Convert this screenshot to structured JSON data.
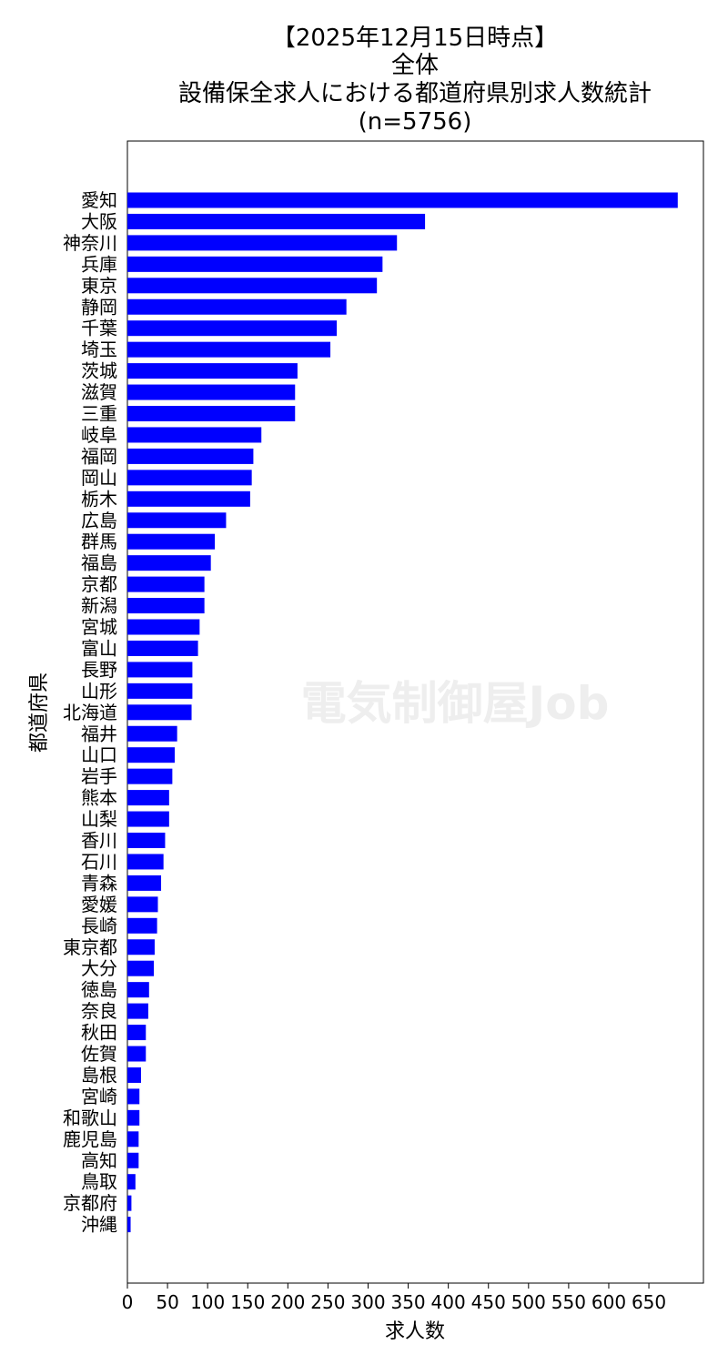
{
  "chart_data": {
    "type": "bar",
    "orientation": "horizontal",
    "title_lines": [
      "【2025年12月15日時点】",
      "全体",
      "設備保全求人における都道府県別求人数統計",
      "(n=5756)"
    ],
    "xlabel": "求人数",
    "ylabel": "都道府県",
    "xlim": [
      0,
      718
    ],
    "xticks": [
      0,
      50,
      100,
      150,
      200,
      250,
      300,
      350,
      400,
      450,
      500,
      550,
      600,
      650
    ],
    "bar_color": "#0000ff",
    "grid": false,
    "watermark": "電気制御屋Job",
    "categories": [
      "愛知",
      "大阪",
      "神奈川",
      "兵庫",
      "東京",
      "静岡",
      "千葉",
      "埼玉",
      "茨城",
      "滋賀",
      "三重",
      "岐阜",
      "福岡",
      "岡山",
      "栃木",
      "広島",
      "群馬",
      "福島",
      "京都",
      "新潟",
      "宮城",
      "富山",
      "長野",
      "山形",
      "北海道",
      "福井",
      "山口",
      "岩手",
      "熊本",
      "山梨",
      "香川",
      "石川",
      "青森",
      "愛媛",
      "長崎",
      "東京都",
      "大分",
      "徳島",
      "奈良",
      "秋田",
      "佐賀",
      "島根",
      "宮崎",
      "和歌山",
      "鹿児島",
      "高知",
      "鳥取",
      "京都府",
      "沖縄"
    ],
    "values": [
      686,
      371,
      336,
      318,
      311,
      273,
      261,
      253,
      212,
      209,
      209,
      167,
      157,
      155,
      153,
      123,
      109,
      104,
      96,
      96,
      90,
      88,
      81,
      81,
      80,
      62,
      59,
      56,
      52,
      52,
      47,
      45,
      42,
      38,
      37,
      34,
      33,
      27,
      26,
      23,
      23,
      17,
      15,
      15,
      14,
      14,
      10,
      5,
      4
    ]
  }
}
